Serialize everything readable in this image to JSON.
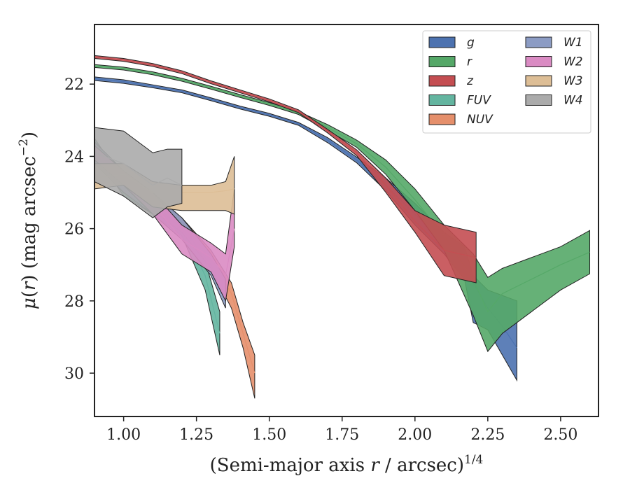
{
  "chart_data": {
    "type": "area",
    "title": "",
    "xlabel_html": "(Semi-major axis <tspan font-style=\"italic\">r</tspan> / arcsec)<tspan dy=\"-11\" font-size=\"17\">1/4</tspan>",
    "xlabel": "(Semi-major axis r / arcsec)^1/4",
    "ylabel": "μ(r) (mag arcsec⁻²)",
    "xlim": [
      0.9,
      2.63
    ],
    "ylim": [
      31.2,
      20.35
    ],
    "y_inverted": true,
    "xticks": [
      1.0,
      1.25,
      1.5,
      1.75,
      2.0,
      2.25,
      2.5
    ],
    "xtick_labels": [
      "1.00",
      "1.25",
      "1.50",
      "1.75",
      "2.00",
      "2.25",
      "2.50"
    ],
    "yticks": [
      22,
      24,
      26,
      28,
      30
    ],
    "ytick_labels": [
      "22",
      "24",
      "26",
      "28",
      "30"
    ],
    "grid": false,
    "legend_position": "top-right",
    "legend_columns": 2,
    "series": [
      {
        "name": "g",
        "color": "#4C72B0",
        "x": [
          0.9,
          1.0,
          1.1,
          1.2,
          1.3,
          1.4,
          1.5,
          1.6,
          1.7,
          1.8,
          1.9,
          2.0,
          2.1,
          2.17,
          2.2,
          2.25,
          2.3,
          2.35
        ],
        "y": [
          21.85,
          21.93,
          22.06,
          22.2,
          22.42,
          22.65,
          22.85,
          23.1,
          23.55,
          24.1,
          24.8,
          25.6,
          26.4,
          26.9,
          27.5,
          28.2,
          28.7,
          29.3
        ],
        "lo": [
          21.8,
          21.88,
          22.02,
          22.16,
          22.38,
          22.61,
          22.81,
          23.06,
          23.48,
          24.02,
          24.6,
          25.3,
          26.1,
          26.5,
          27.3,
          27.7,
          27.85,
          28.0
        ],
        "hi": [
          21.9,
          21.98,
          22.1,
          22.24,
          22.46,
          22.69,
          22.89,
          23.14,
          23.62,
          24.18,
          24.95,
          25.9,
          26.7,
          27.4,
          28.6,
          28.8,
          29.5,
          30.2
        ]
      },
      {
        "name": "r",
        "color": "#55A868",
        "x": [
          0.9,
          1.0,
          1.1,
          1.2,
          1.3,
          1.4,
          1.5,
          1.6,
          1.7,
          1.8,
          1.9,
          2.0,
          2.1,
          2.2,
          2.25,
          2.3,
          2.4,
          2.5,
          2.6
        ],
        "y": [
          21.5,
          21.57,
          21.7,
          21.88,
          22.1,
          22.33,
          22.55,
          22.8,
          23.2,
          23.65,
          24.3,
          25.2,
          26.2,
          27.4,
          28.3,
          27.8,
          27.4,
          27.0,
          26.65
        ],
        "lo": [
          21.46,
          21.53,
          21.66,
          21.84,
          22.06,
          22.29,
          22.51,
          22.76,
          23.12,
          23.55,
          24.1,
          24.9,
          25.9,
          26.7,
          27.35,
          27.1,
          26.8,
          26.5,
          26.05
        ],
        "hi": [
          21.54,
          21.61,
          21.74,
          21.92,
          22.14,
          22.37,
          22.59,
          22.84,
          23.28,
          23.75,
          24.5,
          25.5,
          26.6,
          28.4,
          29.4,
          28.9,
          28.3,
          27.7,
          27.25
        ]
      },
      {
        "name": "z",
        "color": "#C44E52",
        "x": [
          0.9,
          1.0,
          1.1,
          1.2,
          1.3,
          1.4,
          1.5,
          1.6,
          1.7,
          1.8,
          1.9,
          2.0,
          2.1,
          2.21
        ],
        "y": [
          21.25,
          21.33,
          21.47,
          21.67,
          21.95,
          22.2,
          22.45,
          22.75,
          23.3,
          23.9,
          24.8,
          25.8,
          26.6,
          26.8
        ],
        "lo": [
          21.21,
          21.29,
          21.43,
          21.63,
          21.91,
          22.16,
          22.41,
          22.71,
          23.25,
          23.82,
          24.6,
          25.5,
          25.9,
          26.1
        ],
        "hi": [
          21.29,
          21.37,
          21.51,
          21.71,
          21.99,
          22.24,
          22.49,
          22.79,
          23.35,
          23.98,
          25.0,
          26.1,
          27.3,
          27.5
        ]
      },
      {
        "name": "FUV",
        "color": "#64B5A0",
        "x": [
          0.9,
          1.0,
          1.1,
          1.2,
          1.28,
          1.33
        ],
        "y": [
          23.7,
          24.9,
          25.4,
          26.0,
          27.3,
          28.9
        ],
        "lo": [
          23.5,
          24.7,
          25.2,
          25.8,
          26.9,
          28.3
        ],
        "hi": [
          23.9,
          25.1,
          25.6,
          26.2,
          27.7,
          29.5
        ]
      },
      {
        "name": "NUV",
        "color": "#E58F6B",
        "x": [
          0.9,
          1.0,
          1.1,
          1.2,
          1.3,
          1.37,
          1.41,
          1.45
        ],
        "y": [
          23.8,
          24.8,
          25.3,
          25.9,
          26.8,
          27.8,
          28.9,
          30.0
        ],
        "lo": [
          23.6,
          24.6,
          25.1,
          25.7,
          26.6,
          27.5,
          28.6,
          29.5
        ],
        "hi": [
          24.0,
          25.0,
          25.5,
          26.1,
          27.1,
          28.2,
          29.3,
          30.7
        ]
      },
      {
        "name": "W1",
        "color": "#8C9CC4",
        "x": [
          0.9,
          1.0,
          1.1,
          1.2,
          1.3,
          1.35
        ],
        "y": [
          23.9,
          24.7,
          25.3,
          26.0,
          27.0,
          27.8
        ],
        "lo": [
          23.6,
          24.4,
          25.0,
          25.7,
          26.7,
          27.4
        ],
        "hi": [
          24.2,
          25.0,
          25.6,
          26.3,
          27.3,
          28.2
        ]
      },
      {
        "name": "W2",
        "color": "#DA8BC3",
        "x": [
          0.9,
          1.0,
          1.1,
          1.2,
          1.3,
          1.35,
          1.38
        ],
        "y": [
          23.9,
          24.6,
          25.3,
          26.3,
          26.8,
          27.3,
          26.0
        ],
        "lo": [
          23.7,
          24.4,
          25.0,
          25.9,
          26.4,
          26.7,
          24.9
        ],
        "hi": [
          24.1,
          24.8,
          25.6,
          26.7,
          27.2,
          28.0,
          26.5
        ]
      },
      {
        "name": "W3",
        "color": "#DDBE96",
        "x": [
          0.9,
          1.0,
          1.1,
          1.2,
          1.3,
          1.35,
          1.38
        ],
        "y": [
          24.6,
          24.5,
          25.0,
          25.0,
          25.0,
          24.95,
          24.9
        ],
        "lo": [
          24.2,
          24.2,
          24.7,
          24.8,
          24.8,
          24.7,
          24.0
        ],
        "hi": [
          24.9,
          24.8,
          25.4,
          25.5,
          25.5,
          25.5,
          25.6
        ]
      },
      {
        "name": "W4",
        "color": "#ABABAB",
        "x": [
          0.9,
          1.0,
          1.1,
          1.15,
          1.2
        ],
        "y": [
          23.9,
          24.2,
          24.8,
          24.6,
          24.8
        ],
        "lo": [
          23.2,
          23.3,
          23.9,
          23.8,
          23.8
        ],
        "hi": [
          24.7,
          25.1,
          25.7,
          25.4,
          25.3
        ]
      }
    ]
  }
}
